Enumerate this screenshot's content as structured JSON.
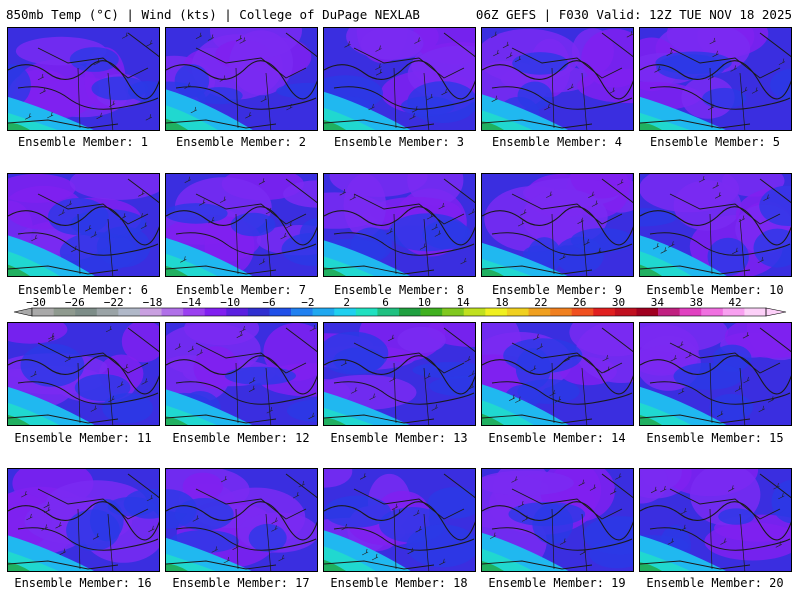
{
  "header": {
    "left": "850mb Temp (°C) | Wind (kts) | College of DuPage NEXLAB",
    "right": "06Z GEFS | F030 Valid: 12Z TUE NOV 18 2025"
  },
  "panels": [
    {
      "label": "Ensemble Member: 1"
    },
    {
      "label": "Ensemble Member: 2"
    },
    {
      "label": "Ensemble Member: 3"
    },
    {
      "label": "Ensemble Member: 4"
    },
    {
      "label": "Ensemble Member: 5"
    },
    {
      "label": "Ensemble Member: 6"
    },
    {
      "label": "Ensemble Member: 7"
    },
    {
      "label": "Ensemble Member: 8"
    },
    {
      "label": "Ensemble Member: 9"
    },
    {
      "label": "Ensemble Member: 10"
    },
    {
      "label": "Ensemble Member: 11"
    },
    {
      "label": "Ensemble Member: 12"
    },
    {
      "label": "Ensemble Member: 13"
    },
    {
      "label": "Ensemble Member: 14"
    },
    {
      "label": "Ensemble Member: 15"
    },
    {
      "label": "Ensemble Member: 16"
    },
    {
      "label": "Ensemble Member: 17"
    },
    {
      "label": "Ensemble Member: 18"
    },
    {
      "label": "Ensemble Member: 19"
    },
    {
      "label": "Ensemble Member: 20"
    }
  ],
  "colorbar": {
    "tick_labels": [
      "−30",
      "−26",
      "−22",
      "−18",
      "−14",
      "−10",
      "−6",
      "−2",
      "2",
      "6",
      "10",
      "14",
      "18",
      "22",
      "26",
      "30",
      "34",
      "38",
      "42"
    ],
    "colors": [
      "#a9a9a9",
      "#8f9a8f",
      "#7d8d88",
      "#9aa3a6",
      "#b0b8c8",
      "#c9a0e0",
      "#b070e8",
      "#9a40f0",
      "#8020f0",
      "#5a20e0",
      "#3030d0",
      "#2050e8",
      "#2080f0",
      "#20a8f0",
      "#20d0f0",
      "#20e0c0",
      "#20c080",
      "#20a040",
      "#40b020",
      "#80c820",
      "#c0e020",
      "#f0f020",
      "#f0d020",
      "#f0a020",
      "#f08020",
      "#f05020",
      "#e02020",
      "#c01020",
      "#a00020",
      "#c02080",
      "#e040c0",
      "#f070e0",
      "#f8a0f0",
      "#fcd0f8"
    ]
  },
  "palette": {
    "cold_purple": "#8020f0",
    "violet": "#7a2af2",
    "blue": "#3a2ee0",
    "deep_blue": "#2a3ae6",
    "cyan": "#20b8f0",
    "teal": "#20d8d0",
    "green": "#20b060",
    "map_line": "#1a1a1a"
  }
}
